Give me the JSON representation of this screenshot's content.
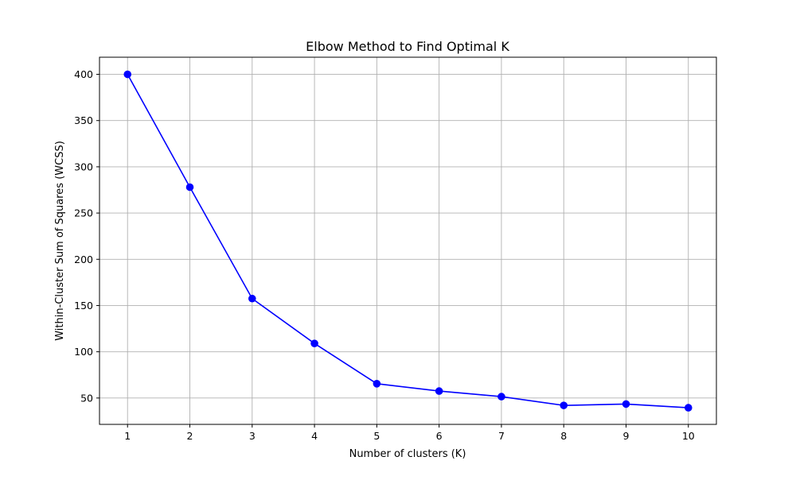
{
  "chart_data": {
    "type": "line",
    "title": "Elbow Method to Find Optimal K",
    "xlabel": "Number of clusters (K)",
    "ylabel": "Within-Cluster Sum of Squares (WCSS)",
    "x": [
      1,
      2,
      3,
      4,
      5,
      6,
      7,
      8,
      9,
      10
    ],
    "series": [
      {
        "values": [
          400,
          278,
          157.5,
          109,
          65.5,
          57.5,
          51.5,
          42,
          43.5,
          39.5
        ],
        "color": "#0000ff",
        "marker": "circle"
      }
    ],
    "xticks": [
      1,
      2,
      3,
      4,
      5,
      6,
      7,
      8,
      9,
      10
    ],
    "yticks": [
      50,
      100,
      150,
      200,
      250,
      300,
      350,
      400
    ],
    "xlim": [
      0.55,
      10.45
    ],
    "ylim": [
      21.5,
      418.5
    ],
    "grid": true,
    "grid_color": "#b0b0b0"
  }
}
